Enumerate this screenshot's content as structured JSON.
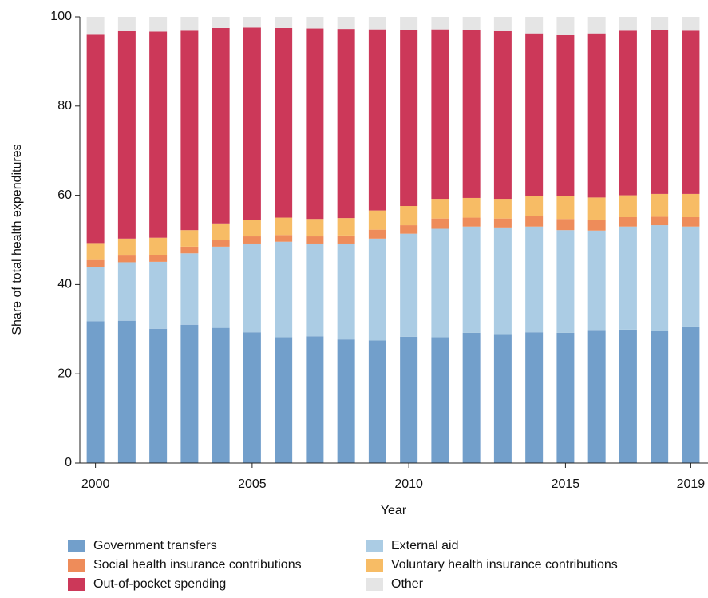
{
  "chart_data": {
    "type": "stacked_bar",
    "x": [
      2000,
      2001,
      2002,
      2003,
      2004,
      2005,
      2006,
      2007,
      2008,
      2009,
      2010,
      2011,
      2012,
      2013,
      2014,
      2015,
      2016,
      2017,
      2018,
      2019
    ],
    "series": [
      {
        "name": "Government transfers",
        "color": "#729fcb",
        "values": [
          31.8,
          31.9,
          30.1,
          31,
          30.3,
          29.3,
          28.2,
          28.4,
          27.7,
          27.5,
          28.3,
          28.2,
          29.2,
          28.9,
          29.3,
          29.2,
          29.8,
          29.9,
          29.6,
          30.6
        ]
      },
      {
        "name": "External aid",
        "color": "#abcce4",
        "values": [
          12.2,
          13.1,
          15,
          16,
          18.2,
          19.9,
          21.4,
          20.8,
          21.5,
          22.8,
          23.1,
          24.3,
          23.8,
          23.9,
          23.7,
          23,
          22.3,
          23.1,
          23.7,
          22.4
        ]
      },
      {
        "name": "Social health insurance contributions",
        "color": "#ee8c5a",
        "values": [
          1.5,
          1.5,
          1.5,
          1.5,
          1.5,
          1.6,
          1.5,
          1.6,
          1.8,
          2.0,
          1.9,
          2.3,
          2.0,
          2.0,
          2.3,
          2.5,
          2.3,
          2.1,
          1.9,
          2.1
        ]
      },
      {
        "name": "Voluntary health insurance contributions",
        "color": "#f7bc65",
        "values": [
          3.8,
          3.8,
          3.9,
          3.7,
          3.7,
          3.7,
          3.9,
          3.9,
          3.9,
          4.3,
          4.3,
          4.4,
          4.4,
          4.4,
          4.5,
          5.1,
          5.1,
          4.9,
          5.1,
          5.2
        ]
      },
      {
        "name": "Out-of-pocket spending",
        "color": "#cc3859",
        "values": [
          46.7,
          46.5,
          46.2,
          44.7,
          43.8,
          43.1,
          42.5,
          42.7,
          42.4,
          40.6,
          39.5,
          38,
          37.6,
          37.6,
          36.5,
          36.1,
          36.8,
          36.9,
          36.7,
          36.6
        ]
      },
      {
        "name": "Other",
        "color": "#e5e5e5",
        "values": [
          4.0,
          3.2,
          3.3,
          3.1,
          2.5,
          2.4,
          2.5,
          2.6,
          2.7,
          2.8,
          2.9,
          2.8,
          3.0,
          3.2,
          3.7,
          4.1,
          3.7,
          3.1,
          3.0,
          3.1
        ]
      }
    ],
    "x_label": "Year",
    "y_label": "Share of total health expenditures",
    "xlim": [
      1999.5,
      2019.55
    ],
    "xticks": [
      2000,
      2005,
      2010,
      2015,
      2019
    ],
    "ylim": [
      0,
      100
    ],
    "yticks": [
      0,
      20,
      40,
      60,
      80,
      100
    ],
    "grid": false,
    "legend": "bottom"
  }
}
